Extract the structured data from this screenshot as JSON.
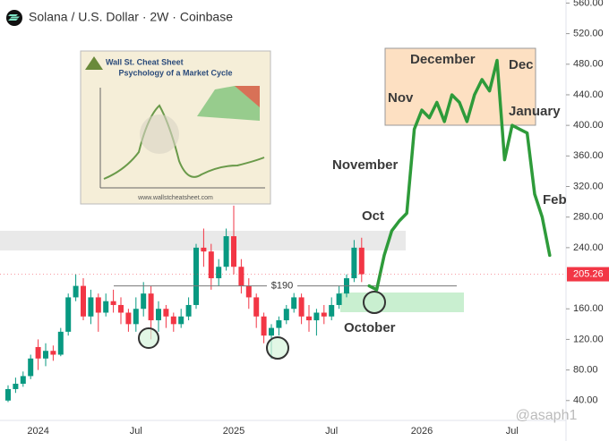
{
  "chart_data": {
    "type": "candlestick",
    "title": "Solana / U.S. Dollar · 2W · Coinbase",
    "categories": [
      null,
      null,
      null,
      null,
      "2024",
      null,
      null,
      null,
      null,
      null,
      null,
      null,
      null,
      null,
      null,
      null,
      null,
      "Jul",
      null,
      null,
      null,
      null,
      null,
      null,
      null,
      null,
      null,
      null,
      null,
      null,
      "2025",
      null,
      null,
      null,
      null,
      null,
      null,
      null,
      null,
      null,
      null,
      null,
      null,
      "Jul",
      null,
      null,
      null,
      null,
      null,
      null,
      null,
      null,
      null,
      null,
      null,
      "2026",
      null,
      null,
      null,
      null,
      null,
      null,
      null,
      null,
      null,
      null,
      null,
      "Jul",
      null,
      null,
      null,
      null,
      null,
      null
    ],
    "ohlc": {
      "up_color": "#089981",
      "down_color": "#f23645",
      "open": [
        40,
        55,
        62,
        72,
        110,
        95,
        105,
        100,
        130,
        175,
        190,
        150,
        175,
        155,
        170,
        165,
        155,
        140,
        160,
        180,
        145,
        160,
        150,
        140,
        150,
        165,
        240,
        235,
        200,
        215,
        255,
        215,
        190,
        175,
        150,
        125,
        135,
        145,
        160,
        175,
        150,
        145,
        155,
        150,
        165,
        180,
        200,
        240,
        null,
        null,
        null,
        null,
        null,
        null,
        null,
        null,
        null,
        null,
        null,
        null,
        null,
        null,
        null,
        null,
        null,
        null,
        null,
        null,
        null,
        null,
        null,
        null,
        null,
        null
      ],
      "high": [
        60,
        70,
        78,
        100,
        120,
        115,
        112,
        135,
        180,
        205,
        200,
        185,
        180,
        180,
        185,
        175,
        160,
        175,
        195,
        190,
        170,
        165,
        155,
        160,
        175,
        245,
        265,
        245,
        225,
        265,
        295,
        225,
        200,
        180,
        155,
        140,
        150,
        165,
        185,
        180,
        165,
        160,
        165,
        175,
        190,
        205,
        250,
        253,
        null,
        null,
        null,
        null,
        null,
        null,
        null,
        null,
        null,
        null,
        null,
        null,
        null,
        null,
        null,
        null,
        null,
        null,
        null,
        null,
        null,
        null,
        null,
        null,
        null,
        null
      ],
      "low": [
        38,
        50,
        58,
        68,
        80,
        85,
        92,
        98,
        125,
        170,
        145,
        140,
        130,
        150,
        155,
        140,
        130,
        130,
        150,
        120,
        130,
        135,
        130,
        135,
        145,
        160,
        215,
        185,
        190,
        210,
        205,
        180,
        160,
        135,
        115,
        95,
        125,
        140,
        155,
        140,
        130,
        125,
        140,
        145,
        160,
        175,
        195,
        195,
        null,
        null,
        null,
        null,
        null,
        null,
        null,
        null,
        null,
        null,
        null,
        null,
        null,
        null,
        null,
        null,
        null,
        null,
        null,
        null,
        null,
        null,
        null,
        null,
        null,
        null
      ],
      "close": [
        55,
        62,
        72,
        95,
        95,
        105,
        100,
        130,
        175,
        190,
        150,
        175,
        155,
        170,
        165,
        155,
        140,
        160,
        180,
        145,
        160,
        150,
        140,
        150,
        165,
        240,
        235,
        200,
        215,
        255,
        215,
        190,
        175,
        150,
        125,
        135,
        145,
        160,
        175,
        150,
        145,
        155,
        150,
        165,
        180,
        200,
        240,
        205.26,
        null,
        null,
        null,
        null,
        null,
        null,
        null,
        null,
        null,
        null,
        null,
        null,
        null,
        null,
        null,
        null,
        null,
        null,
        null,
        null,
        null,
        null,
        null,
        null,
        null,
        null
      ]
    },
    "projection": {
      "color": "#2e9b3a",
      "values": [
        null,
        null,
        null,
        null,
        null,
        null,
        null,
        null,
        null,
        null,
        null,
        null,
        null,
        null,
        null,
        null,
        null,
        null,
        null,
        null,
        null,
        null,
        null,
        null,
        null,
        null,
        null,
        null,
        null,
        null,
        null,
        null,
        null,
        null,
        null,
        null,
        null,
        null,
        null,
        null,
        null,
        null,
        null,
        null,
        null,
        null,
        null,
        null,
        190,
        185,
        230,
        262,
        275,
        285,
        395,
        420,
        410,
        430,
        405,
        440,
        430,
        405,
        440,
        460,
        445,
        485,
        355,
        400,
        395,
        390,
        310,
        280,
        230,
        null
      ]
    },
    "ylim": [
      14,
      564
    ],
    "yticks": [
      {
        "value": 40,
        "label": "40.00"
      },
      {
        "value": 80,
        "label": "80.00"
      },
      {
        "value": 120,
        "label": "120.00"
      },
      {
        "value": 160,
        "label": "160.00"
      },
      {
        "value": 240,
        "label": "240.00"
      },
      {
        "value": 280,
        "label": "280.00"
      },
      {
        "value": 320,
        "label": "320.00"
      },
      {
        "value": 360,
        "label": "360.00"
      },
      {
        "value": 400,
        "label": "400.00"
      },
      {
        "value": 440,
        "label": "440.00"
      },
      {
        "value": 480,
        "label": "480.00"
      },
      {
        "value": 520,
        "label": "520.00"
      },
      {
        "value": 560,
        "label": "560.00"
      }
    ],
    "grid": false,
    "last_price": 205.26,
    "level": {
      "value": 190,
      "label": "$190"
    },
    "annotations": [
      "December",
      "Dec",
      "Nov",
      "January",
      "November",
      "Oct",
      "Feb",
      "October"
    ],
    "watermark": "@asaph1",
    "inset": {
      "title": "Wall St. Cheat Sheet",
      "subtitle": "Psychology of a Market Cycle",
      "url": "www.wallstcheatsheet.com"
    }
  }
}
